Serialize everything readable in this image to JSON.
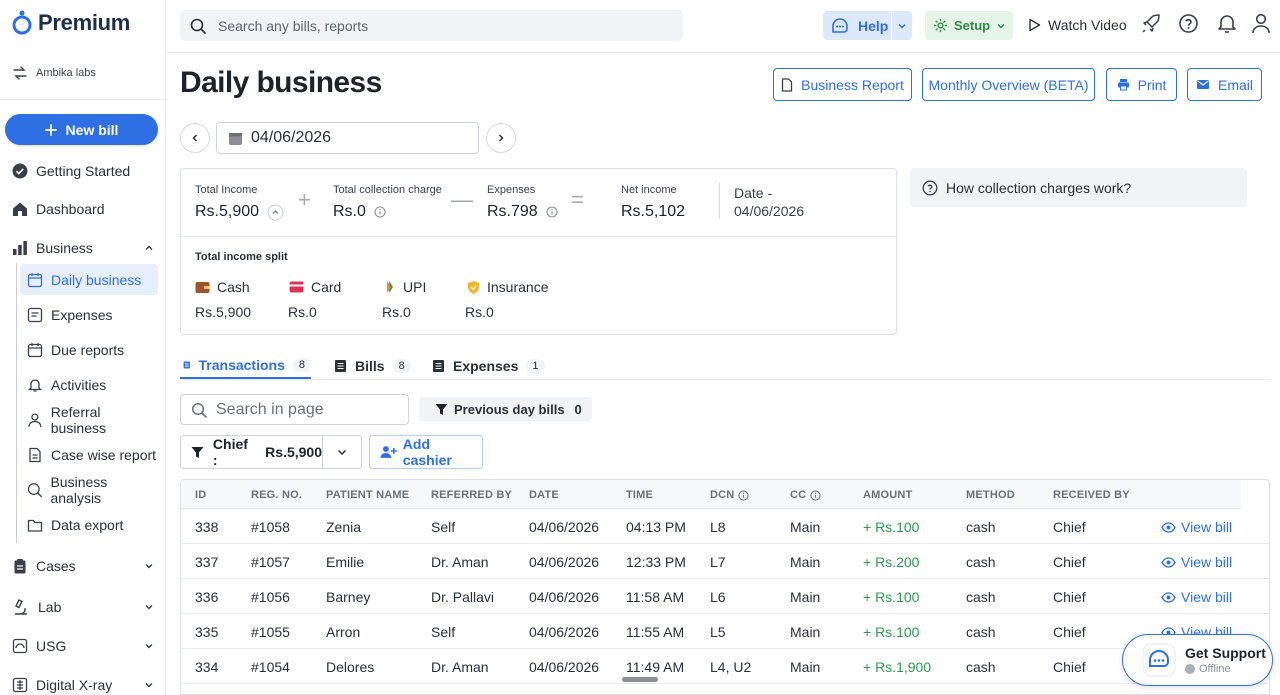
{
  "brand": {
    "name": "Premium",
    "accent": "#2f6fe4"
  },
  "sidebar": {
    "org": "Ambika labs",
    "new_bill": "New bill",
    "items": [
      {
        "label": "Getting Started",
        "icon": "check-circle-icon"
      },
      {
        "label": "Dashboard",
        "icon": "home-icon"
      },
      {
        "label": "Business",
        "icon": "bar-chart-icon",
        "expanded": true
      },
      {
        "label": "Cases",
        "icon": "clipboard-icon"
      },
      {
        "label": "Lab",
        "icon": "microscope-icon"
      },
      {
        "label": "USG",
        "icon": "ultrasound-icon"
      },
      {
        "label": "Digital X-ray",
        "icon": "xray-icon"
      }
    ],
    "business_sub": [
      {
        "label": "Daily business",
        "active": true
      },
      {
        "label": "Expenses"
      },
      {
        "label": "Due reports"
      },
      {
        "label": "Activities"
      },
      {
        "label": "Referral business"
      },
      {
        "label": "Case wise report"
      },
      {
        "label": "Business analysis"
      },
      {
        "label": "Data export"
      }
    ]
  },
  "topbar": {
    "search_placeholder": "Search any bills, reports",
    "help": "Help",
    "setup": "Setup",
    "watch_video": "Watch Video"
  },
  "page": {
    "title": "Daily business",
    "buttons": {
      "business_report": "Business Report",
      "monthly_overview": "Monthly Overview (BETA)",
      "print": "Print",
      "email": "Email"
    },
    "date": "04/06/2026"
  },
  "summary": {
    "total_income_label": "Total Income",
    "total_income": "Rs.5,900",
    "collection_label": "Total collection charge",
    "collection": "Rs.0",
    "expenses_label": "Expenses",
    "expenses": "Rs.798",
    "net_label": "Net income",
    "net": "Rs.5,102",
    "date_label": "Date -",
    "date_value": "04/06/2026",
    "split_title": "Total income split",
    "split": [
      {
        "name": "Cash",
        "value": "Rs.5,900"
      },
      {
        "name": "Card",
        "value": "Rs.0"
      },
      {
        "name": "UPI",
        "value": "Rs.0"
      },
      {
        "name": "Insurance",
        "value": "Rs.0"
      }
    ]
  },
  "how_box": "How collection charges work?",
  "tabs": [
    {
      "label": "Transactions",
      "count": "8",
      "active": true
    },
    {
      "label": "Bills",
      "count": "8"
    },
    {
      "label": "Expenses",
      "count": "1"
    }
  ],
  "filters": {
    "search_placeholder": "Search in page",
    "previous_day_bills": "Previous day bills",
    "previous_day_count": "0",
    "chief_label": "Chief :",
    "chief_value": "Rs.5,900",
    "add_cashier": "Add cashier"
  },
  "table": {
    "headers": [
      "ID",
      "REG. NO.",
      "PATIENT NAME",
      "REFERRED BY",
      "DATE",
      "TIME",
      "DCN",
      "CC",
      "AMOUNT",
      "METHOD",
      "RECEIVED BY"
    ],
    "view_label": "View bill",
    "rows": [
      {
        "id": "338",
        "reg": "#1058",
        "name": "Zenia",
        "ref": "Self",
        "date": "04/06/2026",
        "time": "04:13 PM",
        "dcn": "L8",
        "cc": "Main",
        "amount": "+ Rs.100",
        "method": "cash",
        "received": "Chief"
      },
      {
        "id": "337",
        "reg": "#1057",
        "name": "Emilie",
        "ref": "Dr. Aman",
        "date": "04/06/2026",
        "time": "12:33 PM",
        "dcn": "L7",
        "cc": "Main",
        "amount": "+ Rs.200",
        "method": "cash",
        "received": "Chief"
      },
      {
        "id": "336",
        "reg": "#1056",
        "name": "Barney",
        "ref": "Dr. Pallavi",
        "date": "04/06/2026",
        "time": "11:58 AM",
        "dcn": "L6",
        "cc": "Main",
        "amount": "+ Rs.100",
        "method": "cash",
        "received": "Chief"
      },
      {
        "id": "335",
        "reg": "#1055",
        "name": "Arron",
        "ref": "Self",
        "date": "04/06/2026",
        "time": "11:55 AM",
        "dcn": "L5",
        "cc": "Main",
        "amount": "+ Rs.100",
        "method": "cash",
        "received": "Chief"
      },
      {
        "id": "334",
        "reg": "#1054",
        "name": "Delores",
        "ref": "Dr. Aman",
        "date": "04/06/2026",
        "time": "11:49 AM",
        "dcn": "L4, U2",
        "cc": "Main",
        "amount": "+ Rs.1,900",
        "method": "cash",
        "received": "Chief"
      }
    ]
  },
  "support": {
    "title": "Get Support",
    "status": "Offline"
  }
}
